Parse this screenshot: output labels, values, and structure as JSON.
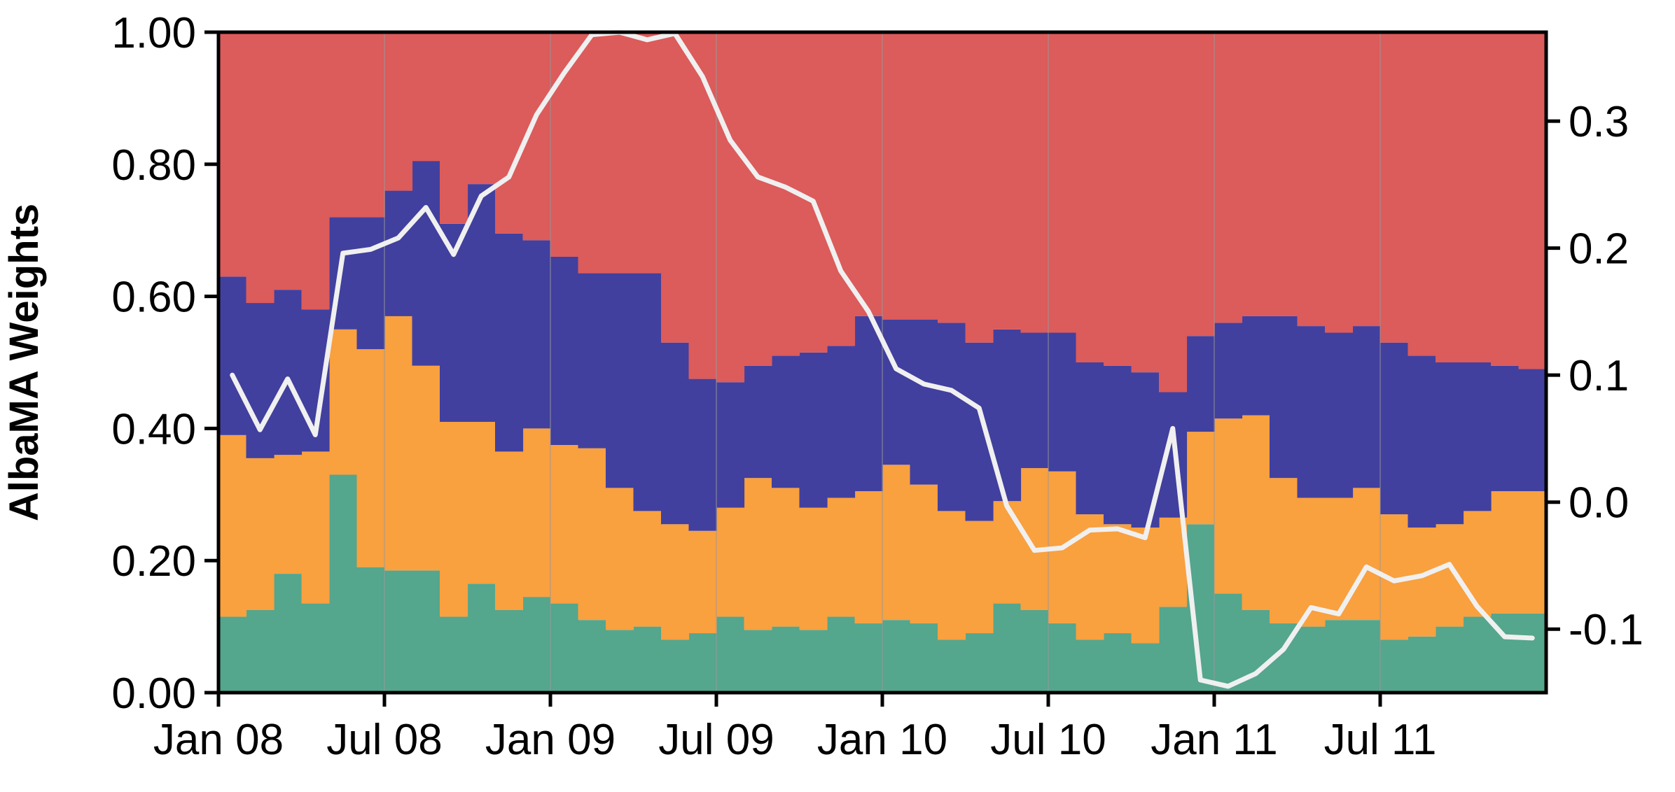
{
  "chart_data": {
    "type": "area",
    "stacked": true,
    "step": true,
    "title": "",
    "xlabel": "",
    "ylabel": "AlbaMA Weights",
    "ylim": [
      0,
      1
    ],
    "y2lim": [
      -0.15,
      0.37
    ],
    "x_start": "Jan 08",
    "x_end": "Dec 11",
    "x": [
      "Jan 08",
      "Feb 08",
      "Mar 08",
      "Apr 08",
      "May 08",
      "Jun 08",
      "Jul 08",
      "Aug 08",
      "Sep 08",
      "Oct 08",
      "Nov 08",
      "Dec 08",
      "Jan 09",
      "Feb 09",
      "Mar 09",
      "Apr 09",
      "May 09",
      "Jun 09",
      "Jul 09",
      "Aug 09",
      "Sep 09",
      "Oct 09",
      "Nov 09",
      "Dec 09",
      "Jan 10",
      "Feb 10",
      "Mar 10",
      "Apr 10",
      "May 10",
      "Jun 10",
      "Jul 10",
      "Aug 10",
      "Sep 10",
      "Oct 10",
      "Nov 10",
      "Dec 10",
      "Jan 11",
      "Feb 11",
      "Mar 11",
      "Apr 11",
      "May 11",
      "Jun 11",
      "Jul 11",
      "Aug 11",
      "Sep 11",
      "Oct 11",
      "Nov 11",
      "Dec 11"
    ],
    "x_ticks": [
      "Jan 08",
      "Jul 08",
      "Jan 09",
      "Jul 09",
      "Jan 10",
      "Jul 10",
      "Jan 11",
      "Jul 11"
    ],
    "y_ticks": [
      "0.00",
      "0.20",
      "0.40",
      "0.60",
      "0.80",
      "1.00"
    ],
    "y2_ticks": [
      "-0.1",
      "0.0",
      "0.1",
      "0.2",
      "0.3"
    ],
    "series": [
      {
        "color": "#54a68d",
        "values": [
          0.115,
          0.125,
          0.18,
          0.135,
          0.33,
          0.19,
          0.185,
          0.185,
          0.115,
          0.165,
          0.125,
          0.145,
          0.135,
          0.11,
          0.095,
          0.1,
          0.08,
          0.09,
          0.115,
          0.095,
          0.1,
          0.095,
          0.115,
          0.105,
          0.11,
          0.105,
          0.08,
          0.09,
          0.135,
          0.125,
          0.105,
          0.08,
          0.09,
          0.075,
          0.13,
          0.255,
          0.15,
          0.125,
          0.105,
          0.1,
          0.11,
          0.11,
          0.08,
          0.085,
          0.1,
          0.115,
          0.12,
          0.12
        ]
      },
      {
        "color": "#f9a03f",
        "values": [
          0.275,
          0.23,
          0.18,
          0.23,
          0.22,
          0.33,
          0.385,
          0.31,
          0.295,
          0.245,
          0.24,
          0.255,
          0.24,
          0.26,
          0.215,
          0.175,
          0.175,
          0.155,
          0.165,
          0.23,
          0.21,
          0.185,
          0.18,
          0.2,
          0.235,
          0.21,
          0.195,
          0.17,
          0.155,
          0.215,
          0.23,
          0.19,
          0.165,
          0.175,
          0.135,
          0.14,
          0.265,
          0.295,
          0.22,
          0.195,
          0.185,
          0.2,
          0.19,
          0.165,
          0.155,
          0.16,
          0.185,
          0.185
        ]
      },
      {
        "color": "#41409e",
        "values": [
          0.24,
          0.235,
          0.25,
          0.215,
          0.17,
          0.2,
          0.19,
          0.31,
          0.3,
          0.36,
          0.33,
          0.285,
          0.285,
          0.265,
          0.325,
          0.36,
          0.275,
          0.23,
          0.19,
          0.17,
          0.2,
          0.235,
          0.23,
          0.265,
          0.22,
          0.25,
          0.285,
          0.27,
          0.26,
          0.205,
          0.21,
          0.23,
          0.24,
          0.235,
          0.19,
          0.145,
          0.145,
          0.15,
          0.245,
          0.26,
          0.25,
          0.245,
          0.26,
          0.26,
          0.245,
          0.225,
          0.19,
          0.185
        ]
      },
      {
        "color": "#dc5b5b",
        "values": [
          0.37,
          0.41,
          0.39,
          0.42,
          0.28,
          0.28,
          0.24,
          0.195,
          0.29,
          0.23,
          0.305,
          0.315,
          0.34,
          0.365,
          0.365,
          0.365,
          0.47,
          0.525,
          0.53,
          0.505,
          0.49,
          0.485,
          0.475,
          0.43,
          0.435,
          0.435,
          0.44,
          0.47,
          0.45,
          0.455,
          0.455,
          0.5,
          0.505,
          0.515,
          0.545,
          0.46,
          0.44,
          0.43,
          0.43,
          0.445,
          0.455,
          0.445,
          0.47,
          0.49,
          0.5,
          0.5,
          0.505,
          0.51
        ]
      }
    ],
    "line": {
      "color": "#f0f0f0",
      "values": [
        0.1,
        0.057,
        0.097,
        0.053,
        0.196,
        0.199,
        0.208,
        0.232,
        0.195,
        0.241,
        0.256,
        0.305,
        0.338,
        0.368,
        0.37,
        0.364,
        0.369,
        0.335,
        0.285,
        0.256,
        0.248,
        0.237,
        0.182,
        0.15,
        0.105,
        0.093,
        0.088,
        0.074,
        -0.003,
        -0.038,
        -0.036,
        -0.022,
        -0.021,
        -0.028,
        0.058,
        -0.14,
        -0.145,
        -0.135,
        -0.116,
        -0.083,
        -0.088,
        -0.051,
        -0.062,
        -0.058,
        -0.049,
        -0.082,
        -0.106,
        -0.107
      ]
    }
  }
}
